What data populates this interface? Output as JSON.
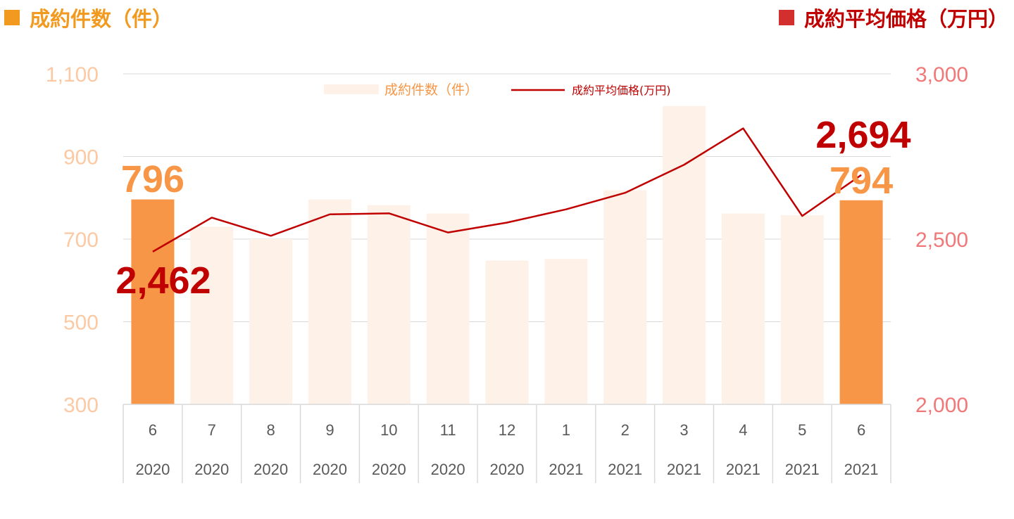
{
  "header": {
    "left_title": "成約件数（件）",
    "right_title": "成約平均価格（万円）"
  },
  "colors": {
    "count_bar": "#fdf1e8",
    "count_bar_highlight": "#f79646",
    "count_label": "#f79646",
    "left_tick": "#fbc9a3",
    "price_line": "#c00000",
    "price_label": "#c00000",
    "right_tick": "#f07878",
    "grid": "#d9d9d9",
    "axis_text": "#595959"
  },
  "chart_data": {
    "type": "bar+line",
    "categories": [
      {
        "month": "6",
        "year": "2020"
      },
      {
        "month": "7",
        "year": "2020"
      },
      {
        "month": "8",
        "year": "2020"
      },
      {
        "month": "9",
        "year": "2020"
      },
      {
        "month": "10",
        "year": "2020"
      },
      {
        "month": "11",
        "year": "2020"
      },
      {
        "month": "12",
        "year": "2020"
      },
      {
        "month": "1",
        "year": "2021"
      },
      {
        "month": "2",
        "year": "2021"
      },
      {
        "month": "3",
        "year": "2021"
      },
      {
        "month": "4",
        "year": "2021"
      },
      {
        "month": "5",
        "year": "2021"
      },
      {
        "month": "6",
        "year": "2021"
      }
    ],
    "series": [
      {
        "name": "成約件数（件）",
        "type": "bar",
        "axis": "left",
        "values": [
          796,
          730,
          700,
          796,
          782,
          762,
          648,
          652,
          818,
          1022,
          762,
          758,
          794
        ],
        "highlight": [
          0,
          12
        ]
      },
      {
        "name": "成約平均価格(万円)",
        "type": "line",
        "axis": "right",
        "values": [
          2462,
          2565,
          2510,
          2575,
          2578,
          2520,
          2550,
          2590,
          2640,
          2725,
          2835,
          2570,
          2694
        ]
      }
    ],
    "y_left": {
      "min": 300,
      "max": 1100,
      "ticks": [
        "300",
        "500",
        "700",
        "900",
        "1,100"
      ],
      "tick_values": [
        300,
        500,
        700,
        900,
        1100
      ]
    },
    "y_right": {
      "min": 2000,
      "max": 3000,
      "ticks": [
        "2,000",
        "2,500",
        "3,000"
      ],
      "tick_values": [
        2000,
        2500,
        3000
      ]
    },
    "annotations": {
      "first_count": "796",
      "last_count": "794",
      "first_price": "2,462",
      "last_price": "2,694"
    },
    "legend_position": "top-center",
    "grid": true
  }
}
